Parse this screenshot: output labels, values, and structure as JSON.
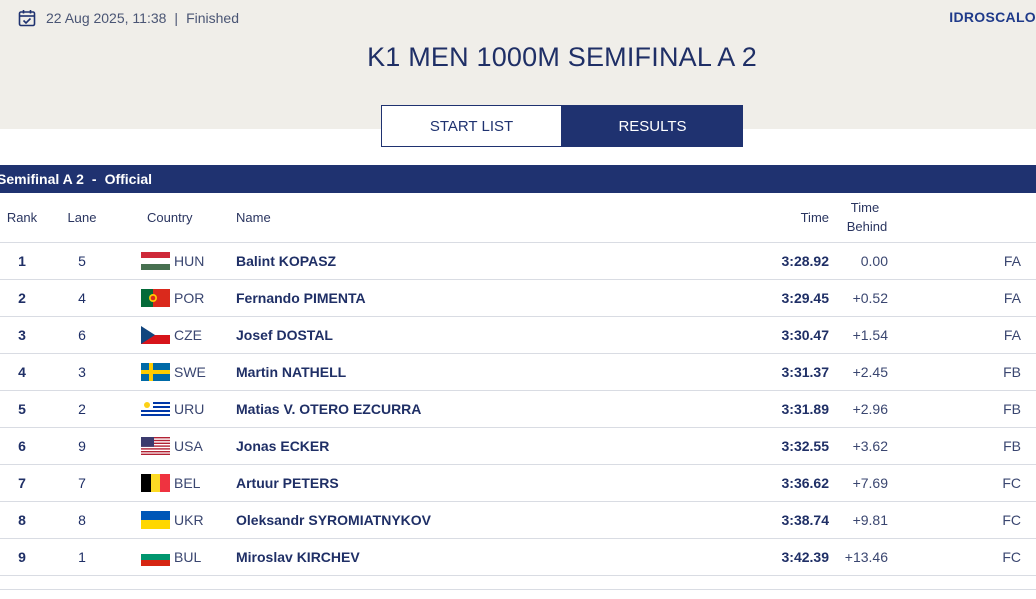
{
  "header": {
    "datetime": "22 Aug 2025, 11:38",
    "separator": "|",
    "status": "Finished",
    "venue": "IDROSCALO",
    "title": "K1 MEN 1000M SEMIFINAL A 2"
  },
  "tabs": {
    "start_list": "START LIST",
    "results": "RESULTS",
    "active": "results"
  },
  "section": {
    "name": "Semifinal A 2",
    "separator": "-",
    "status": "Official"
  },
  "columns": {
    "rank": "Rank",
    "lane": "Lane",
    "country": "Country",
    "name": "Name",
    "time": "Time",
    "time_behind_1": "Time",
    "time_behind_2": "Behind"
  },
  "rows": [
    {
      "rank": "1",
      "lane": "5",
      "flag": "hun-flag",
      "country": "HUN",
      "name": "Balint KOPASZ",
      "time": "3:28.92",
      "behind": "0.00",
      "qual": "FA"
    },
    {
      "rank": "2",
      "lane": "4",
      "flag": "por-flag",
      "country": "POR",
      "name": "Fernando PIMENTA",
      "time": "3:29.45",
      "behind": "+0.52",
      "qual": "FA"
    },
    {
      "rank": "3",
      "lane": "6",
      "flag": "cze-flag",
      "country": "CZE",
      "name": "Josef DOSTAL",
      "time": "3:30.47",
      "behind": "+1.54",
      "qual": "FA"
    },
    {
      "rank": "4",
      "lane": "3",
      "flag": "swe-flag",
      "country": "SWE",
      "name": "Martin NATHELL",
      "time": "3:31.37",
      "behind": "+2.45",
      "qual": "FB"
    },
    {
      "rank": "5",
      "lane": "2",
      "flag": "uru-flag",
      "country": "URU",
      "name": "Matias V. OTERO EZCURRA",
      "time": "3:31.89",
      "behind": "+2.96",
      "qual": "FB"
    },
    {
      "rank": "6",
      "lane": "9",
      "flag": "usa-flag",
      "country": "USA",
      "name": "Jonas ECKER",
      "time": "3:32.55",
      "behind": "+3.62",
      "qual": "FB"
    },
    {
      "rank": "7",
      "lane": "7",
      "flag": "bel-flag",
      "country": "BEL",
      "name": "Artuur PETERS",
      "time": "3:36.62",
      "behind": "+7.69",
      "qual": "FC"
    },
    {
      "rank": "8",
      "lane": "8",
      "flag": "ukr-flag",
      "country": "UKR",
      "name": "Oleksandr SYROMIATNYKOV",
      "time": "3:38.74",
      "behind": "+9.81",
      "qual": "FC"
    },
    {
      "rank": "9",
      "lane": "1",
      "flag": "bul-flag",
      "country": "BUL",
      "name": "Miroslav KIRCHEV",
      "time": "3:42.39",
      "behind": "+13.46",
      "qual": "FC"
    }
  ],
  "colors": {
    "navy": "#1f3270",
    "hero_bg": "#f0eee9",
    "venue_blue": "#1f3a8a"
  }
}
